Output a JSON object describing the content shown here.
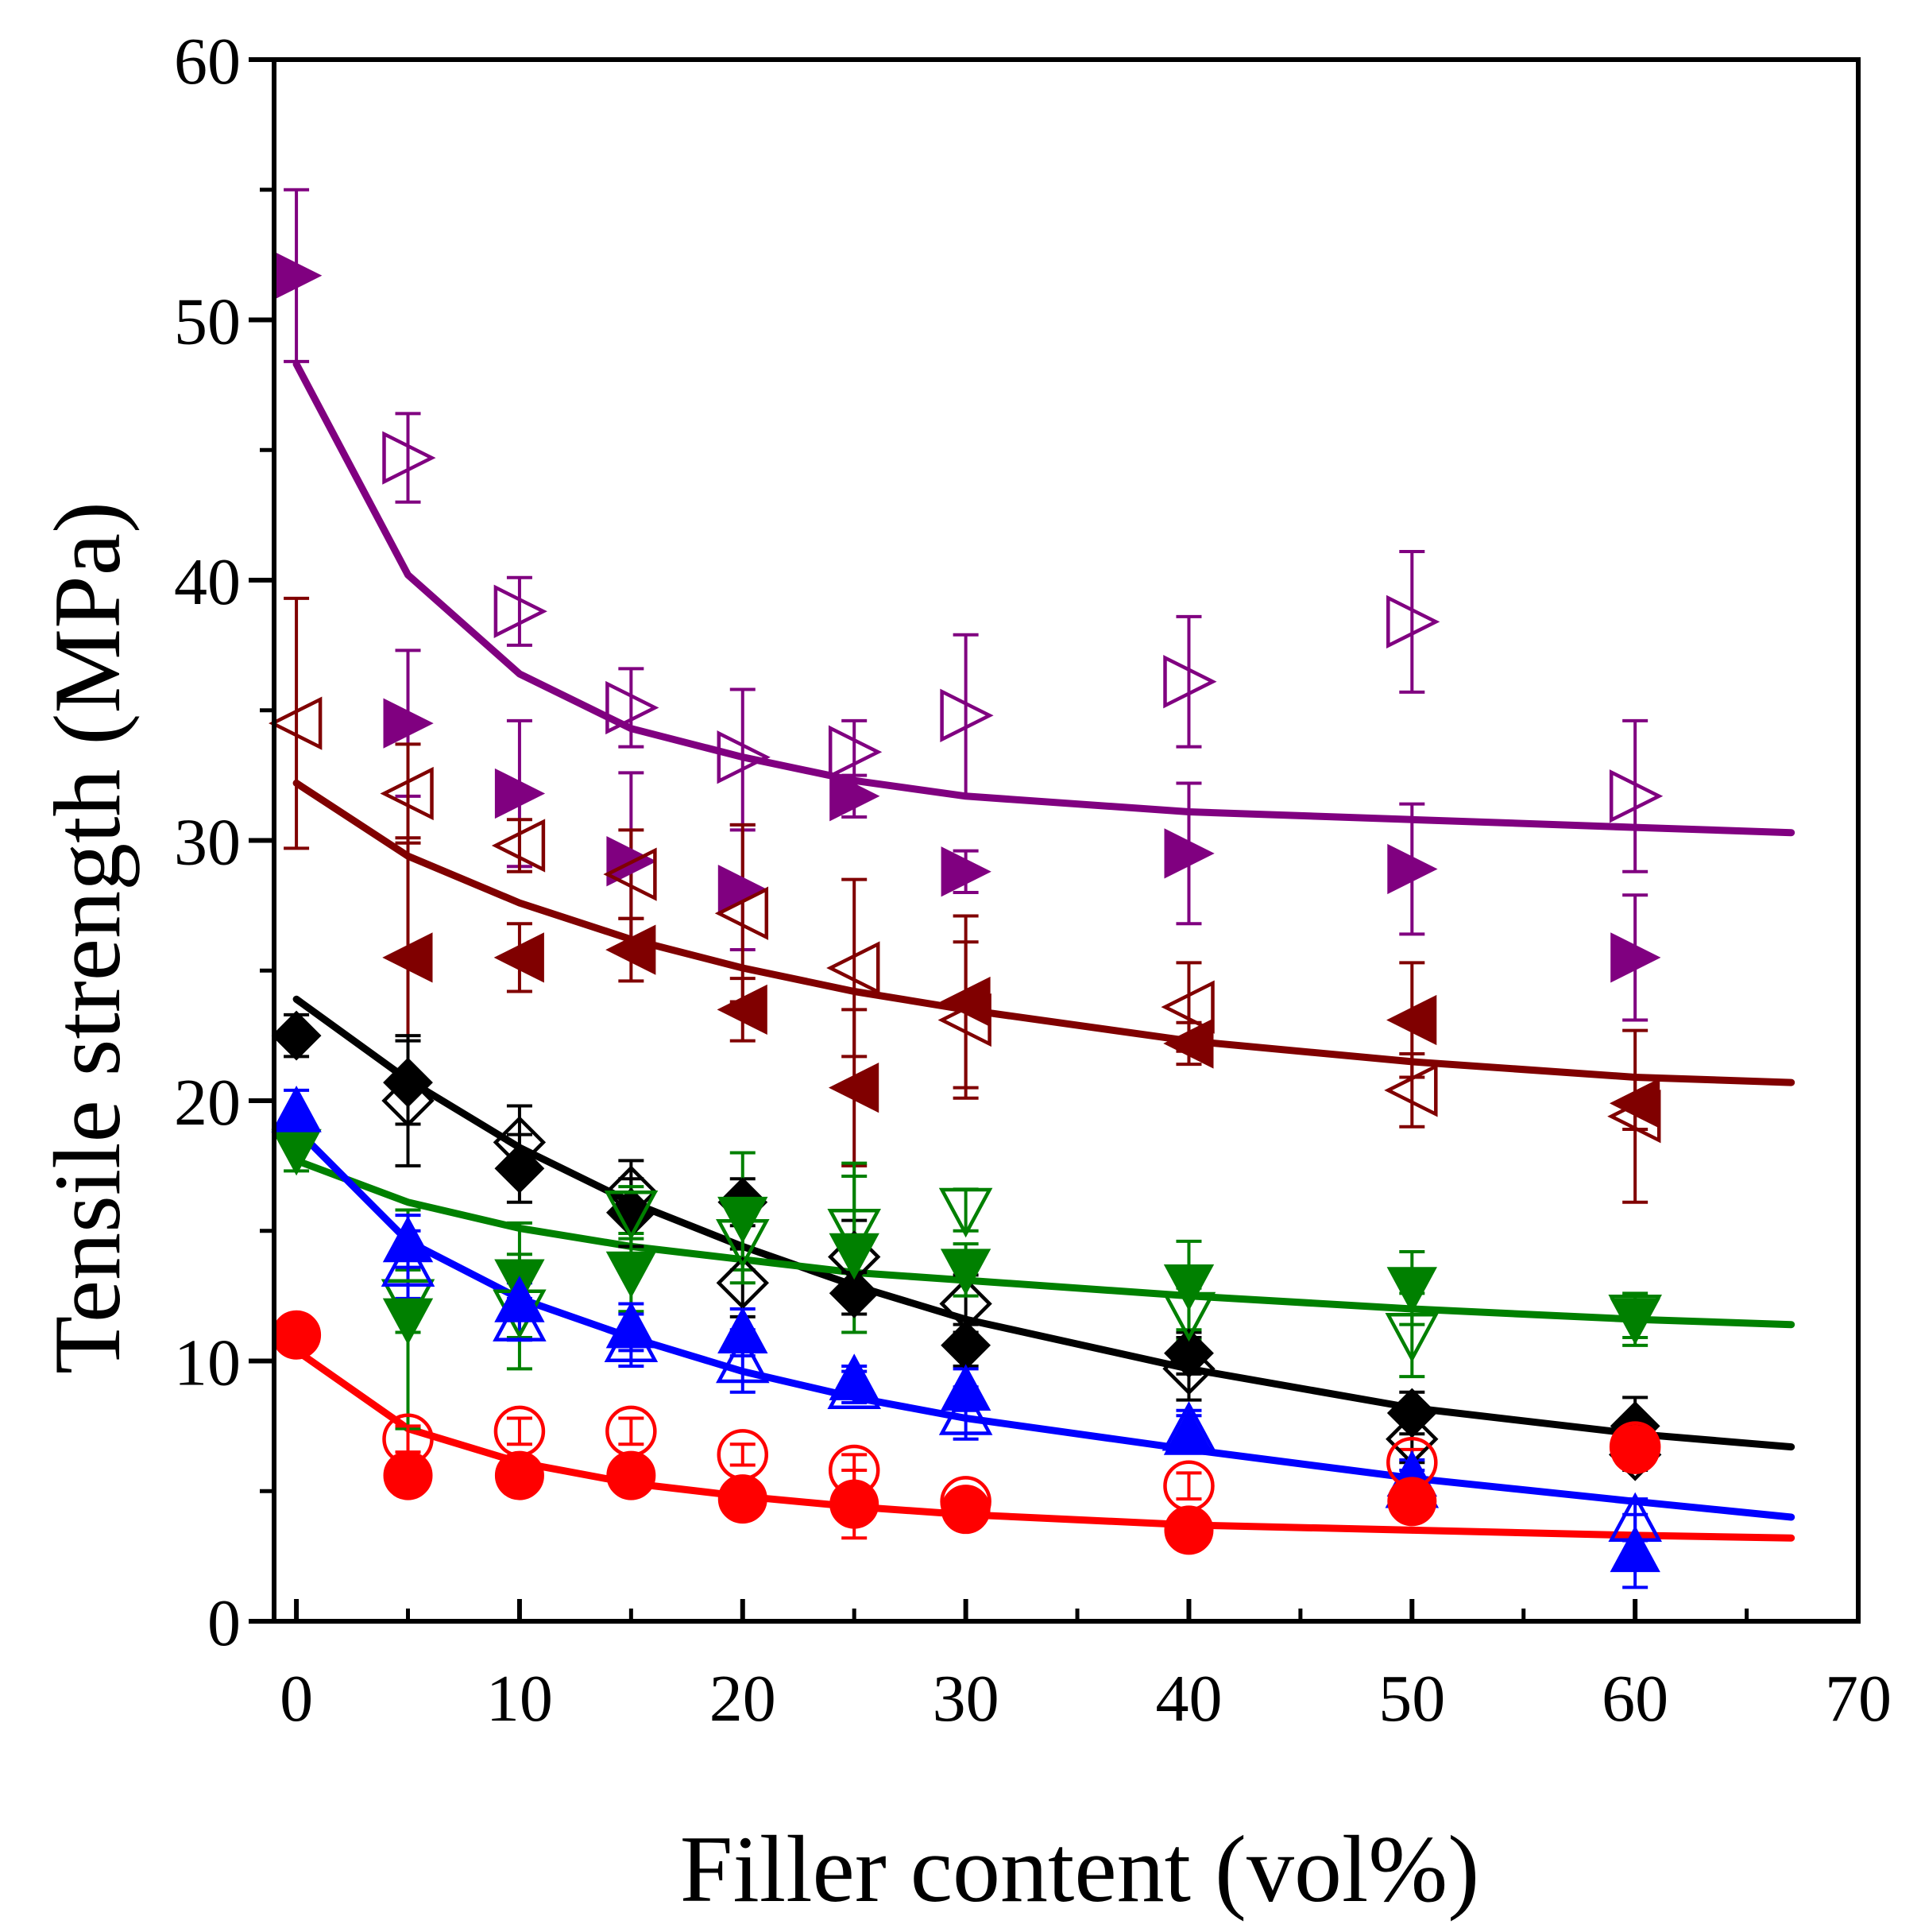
{
  "chart_data": {
    "type": "scatter",
    "title": "",
    "xlabel": "Filler content (vol%)",
    "ylabel": "Tensile strength (MPa)",
    "xlim": [
      -1,
      70
    ],
    "ylim": [
      0,
      60
    ],
    "xticks": [
      0,
      10,
      20,
      30,
      40,
      50,
      60,
      70
    ],
    "yticks": [
      0,
      10,
      20,
      30,
      40,
      50,
      60
    ],
    "xtick_labels": [
      "0",
      "10",
      "20",
      "30",
      "40",
      "50",
      "60",
      "70"
    ],
    "ytick_labels": [
      "0",
      "10",
      "20",
      "30",
      "40",
      "50",
      "60"
    ],
    "grid": false,
    "legend": "none",
    "series": [
      {
        "name": "purple open right-triangle",
        "color": "#800080",
        "marker": "triangle-right",
        "filled": false,
        "x": [
          5,
          10,
          15,
          20,
          25,
          30,
          40,
          50,
          60
        ],
        "y": [
          44.7,
          38.8,
          35.1,
          33.2,
          33.4,
          34.8,
          36.1,
          38.4,
          31.7
        ],
        "err": [
          1.7,
          1.3,
          1.5,
          2.6,
          1.2,
          3.1,
          2.5,
          2.7,
          2.9
        ]
      },
      {
        "name": "purple filled right-triangle",
        "color": "#800080",
        "marker": "triangle-right",
        "filled": true,
        "x": [
          0,
          5,
          10,
          15,
          20,
          25,
          30,
          40,
          50,
          60
        ],
        "y": [
          51.7,
          34.5,
          31.8,
          29.2,
          28.1,
          31.7,
          28.8,
          29.5,
          28.9,
          25.5
        ],
        "err": [
          3.3,
          2.8,
          2.8,
          3.4,
          2.3,
          0.8,
          0.8,
          2.7,
          2.5,
          2.4
        ]
      },
      {
        "name": "maroon open left-triangle",
        "color": "#800000",
        "marker": "triangle-left",
        "filled": false,
        "x": [
          0,
          5,
          10,
          15,
          20,
          25,
          30,
          40,
          50,
          60
        ],
        "y": [
          34.5,
          31.8,
          29.8,
          28.7,
          27.2,
          25.1,
          23.1,
          23.6,
          20.4,
          19.4
        ],
        "err": [
          4.8,
          1.9,
          1.0,
          1.7,
          3.4,
          3.4,
          3.0,
          1.7,
          1.4,
          3.3
        ]
      },
      {
        "name": "maroon filled left-triangle",
        "color": "#800000",
        "marker": "triangle-left",
        "filled": true,
        "x": [
          5,
          10,
          15,
          20,
          25,
          30,
          40,
          50,
          60
        ],
        "y": [
          25.5,
          25.5,
          25.8,
          23.5,
          20.5,
          23.8,
          22.2,
          23.1,
          19.9
        ],
        "err": [
          4.6,
          1.3,
          1.2,
          1.2,
          3.0,
          3.3,
          0.8,
          2.2,
          1.0
        ]
      },
      {
        "name": "black open diamond",
        "color": "#000000",
        "marker": "diamond",
        "filled": false,
        "x": [
          5,
          10,
          15,
          20,
          25,
          30,
          40,
          50,
          60
        ],
        "y": [
          20.0,
          18.4,
          16.5,
          13.0,
          14.0,
          12.2,
          9.7,
          7.0,
          6.4
        ],
        "err": [
          2.5,
          1.4,
          1.2,
          1.3,
          1.4,
          1.1,
          1.2,
          0.9,
          0.6
        ]
      },
      {
        "name": "black filled diamond",
        "color": "#000000",
        "marker": "diamond",
        "filled": true,
        "x": [
          0,
          5,
          10,
          15,
          20,
          25,
          30,
          40,
          50,
          60
        ],
        "y": [
          22.5,
          20.7,
          17.4,
          15.7,
          16.1,
          12.6,
          10.6,
          10.3,
          8.0,
          7.5
        ],
        "err": [
          0.8,
          1.6,
          1.3,
          1.3,
          0.9,
          0.8,
          0.8,
          0.8,
          0.8,
          1.1
        ]
      },
      {
        "name": "green open down-triangle",
        "color": "#008000",
        "marker": "triangle-down",
        "filled": false,
        "x": [
          5,
          10,
          15,
          20,
          25,
          30,
          40,
          50,
          60
        ],
        "y": [
          12.3,
          11.9,
          15.7,
          14.6,
          15.0,
          15.8,
          11.8,
          11.0,
          11.7
        ],
        "err": [
          1.2,
          2.2,
          1.0,
          1.1,
          2.6,
          0.8,
          1.0,
          1.6,
          0.8
        ]
      },
      {
        "name": "green filled down-triangle",
        "color": "#008000",
        "marker": "triangle-down",
        "filled": true,
        "x": [
          0,
          5,
          10,
          15,
          20,
          25,
          30,
          40,
          50,
          60
        ],
        "y": [
          18.1,
          11.6,
          13.1,
          13.4,
          15.5,
          14.1,
          13.5,
          12.9,
          12.8,
          11.6
        ],
        "err": [
          0.8,
          4.2,
          2.2,
          1.5,
          2.5,
          3.0,
          1.0,
          1.7,
          1.4,
          1.0
        ]
      },
      {
        "name": "blue open up-triangle",
        "color": "#0000ff",
        "marker": "triangle-up",
        "filled": false,
        "x": [
          5,
          10,
          15,
          20,
          25,
          30,
          40,
          50,
          60
        ],
        "y": [
          13.7,
          11.6,
          10.8,
          10.0,
          9.0,
          8.0,
          7.4,
          5.2,
          3.9
        ],
        "err": [
          1.3,
          0.8,
          1.0,
          1.2,
          0.6,
          1.0,
          0.7,
          0.6,
          0.8
        ]
      },
      {
        "name": "blue filled up-triangle",
        "color": "#0000ff",
        "marker": "triangle-up",
        "filled": true,
        "x": [
          0,
          5,
          10,
          15,
          20,
          25,
          30,
          40,
          50,
          60
        ],
        "y": [
          19.6,
          14.6,
          12.3,
          11.3,
          11.1,
          9.3,
          8.9,
          7.2,
          5.6,
          2.7
        ],
        "err": [
          0.8,
          1.0,
          0.7,
          0.9,
          0.9,
          0.5,
          0.8,
          0.7,
          0.6,
          1.4
        ]
      },
      {
        "name": "red open circle",
        "color": "#ff0000",
        "marker": "circle",
        "filled": false,
        "x": [
          5,
          10,
          15,
          20,
          25,
          30,
          40,
          50,
          60
        ],
        "y": [
          7.0,
          7.3,
          7.3,
          6.4,
          5.8,
          4.6,
          5.2,
          6.1,
          6.7
        ],
        "err": [
          0.5,
          0.5,
          0.5,
          0.4,
          0.6,
          0.4,
          0.5,
          0.5,
          0.4
        ]
      },
      {
        "name": "red filled circle",
        "color": "#ff0000",
        "marker": "circle",
        "filled": true,
        "x": [
          0,
          5,
          10,
          15,
          20,
          25,
          30,
          40,
          50,
          60
        ],
        "y": [
          11.0,
          5.6,
          5.6,
          5.6,
          4.7,
          4.5,
          4.3,
          3.5,
          4.6,
          6.6
        ],
        "err": [
          0.4,
          0.4,
          0.4,
          0.4,
          0.4,
          1.3,
          0.4,
          0.4,
          0.3,
          0.3
        ]
      }
    ],
    "fit_lines": [
      {
        "name": "purple fit",
        "color": "#800080",
        "x": [
          0,
          5,
          10,
          15,
          20,
          25,
          30,
          40,
          50,
          60,
          67
        ],
        "y": [
          48.3,
          40.2,
          36.4,
          34.3,
          33.2,
          32.3,
          31.7,
          31.1,
          30.8,
          30.5,
          30.3
        ]
      },
      {
        "name": "maroon fit",
        "color": "#800000",
        "x": [
          0,
          5,
          10,
          15,
          20,
          25,
          30,
          40,
          50,
          60,
          67
        ],
        "y": [
          32.2,
          29.4,
          27.6,
          26.2,
          25.1,
          24.2,
          23.5,
          22.3,
          21.5,
          20.9,
          20.7
        ]
      },
      {
        "name": "black fit",
        "color": "#000000",
        "x": [
          0,
          5,
          10,
          15,
          20,
          25,
          30,
          40,
          50,
          60,
          67
        ],
        "y": [
          23.9,
          20.8,
          18.2,
          16.1,
          14.4,
          12.9,
          11.6,
          9.7,
          8.2,
          7.2,
          6.7
        ]
      },
      {
        "name": "green fit",
        "color": "#008000",
        "x": [
          0,
          5,
          10,
          15,
          20,
          25,
          30,
          40,
          50,
          60,
          67
        ],
        "y": [
          17.7,
          16.1,
          15.1,
          14.4,
          13.9,
          13.4,
          13.1,
          12.5,
          12.0,
          11.6,
          11.4
        ]
      },
      {
        "name": "blue fit",
        "color": "#0000ff",
        "x": [
          0,
          5,
          10,
          15,
          20,
          25,
          30,
          40,
          50,
          60,
          67
        ],
        "y": [
          18.9,
          14.6,
          12.4,
          10.9,
          9.6,
          8.6,
          7.8,
          6.6,
          5.5,
          4.6,
          4.0
        ]
      },
      {
        "name": "red fit",
        "color": "#ff0000",
        "x": [
          0,
          5,
          10,
          15,
          20,
          25,
          30,
          40,
          50,
          60,
          67
        ],
        "y": [
          10.4,
          7.4,
          6.1,
          5.3,
          4.8,
          4.4,
          4.1,
          3.7,
          3.5,
          3.3,
          3.2
        ]
      }
    ]
  }
}
